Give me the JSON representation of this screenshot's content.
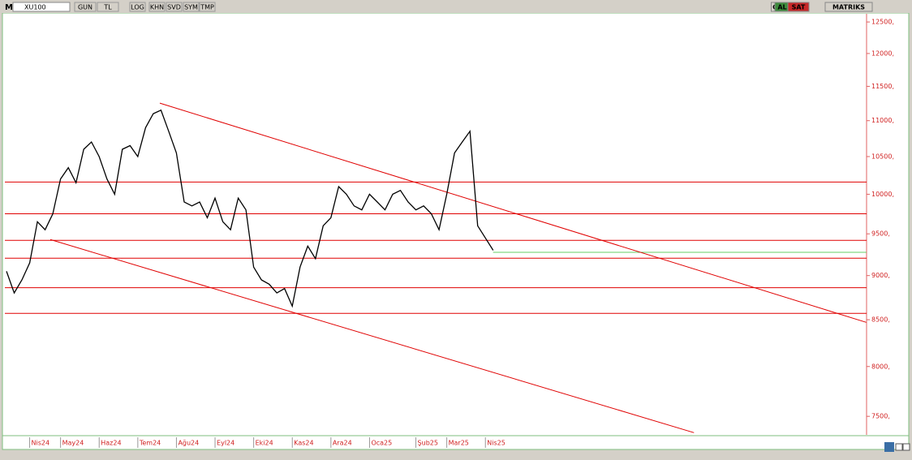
{
  "toolbar": {
    "logo": "M",
    "symbol": "XU100",
    "buttons": [
      "GUN",
      "TL",
      "LOG",
      "KHN",
      "SVD",
      "SYM",
      "TMP"
    ],
    "right": [
      "C",
      "AL",
      "SAT",
      "MATRIKS"
    ]
  },
  "chart_data": {
    "type": "line",
    "color": "#000000",
    "log_scale": true,
    "categories": [
      null,
      null,
      null,
      "Nis24",
      null,
      null,
      null,
      "May24",
      null,
      null,
      null,
      null,
      "Haz24",
      null,
      null,
      null,
      null,
      "Tem24",
      null,
      null,
      null,
      null,
      "Ağu24",
      null,
      null,
      null,
      null,
      "Eyl24",
      null,
      null,
      null,
      null,
      "Eki24",
      null,
      null,
      null,
      null,
      "Kas24",
      null,
      null,
      null,
      null,
      "Ara24",
      null,
      null,
      null,
      null,
      "Oca25",
      null,
      null,
      null,
      null,
      null,
      "Şub25",
      null,
      null,
      null,
      "Mar25",
      null,
      null,
      null,
      null,
      "Nis25",
      null
    ],
    "values": [
      9050,
      8800,
      8950,
      9150,
      9650,
      9550,
      9750,
      10200,
      10350,
      10150,
      10600,
      10700,
      10500,
      10200,
      10000,
      10600,
      10650,
      10500,
      10900,
      11100,
      11150,
      10850,
      10550,
      9900,
      9850,
      9900,
      9700,
      9950,
      9650,
      9550,
      9950,
      9800,
      9100,
      8950,
      8900,
      8800,
      8850,
      8650,
      9100,
      9350,
      9200,
      9600,
      9700,
      10100,
      10000,
      9850,
      9800,
      10000,
      9900,
      9800,
      10000,
      10050,
      9900,
      9800,
      9850,
      9750,
      9550,
      10000,
      10550,
      10700,
      10850,
      9600,
      9450,
      9300
    ],
    "ylim": [
      7330,
      12620
    ],
    "yticks": [
      {
        "value": 7500,
        "label": "7500,"
      },
      {
        "value": 8000,
        "label": "8000,"
      },
      {
        "value": 8500,
        "label": "8500,"
      },
      {
        "value": 9000,
        "label": "9000,"
      },
      {
        "value": 9500,
        "label": "9500,"
      },
      {
        "value": 10000,
        "label": "10000,"
      },
      {
        "value": 10500,
        "label": "10500,"
      },
      {
        "value": 11000,
        "label": "11000,"
      },
      {
        "value": 11500,
        "label": "11500,"
      },
      {
        "value": 12000,
        "label": "12000,"
      },
      {
        "value": 12500,
        "label": "12500,"
      }
    ],
    "levels": [
      {
        "value": 10160,
        "color": "#e00000"
      },
      {
        "value": 9750,
        "color": "#e00000"
      },
      {
        "value": 9420,
        "color": "#e00000"
      },
      {
        "value": 9205,
        "color": "#e00000"
      },
      {
        "value": 8860,
        "color": "#e00000"
      },
      {
        "value": 8570,
        "color": "#e00000"
      },
      {
        "value": 9275,
        "color": "#66cc66",
        "from": 63
      }
    ],
    "trendlines": [
      {
        "color": "#e00000",
        "points": [
          [
            19.85,
            11253
          ],
          [
            111.3,
            8471
          ]
        ]
      },
      {
        "color": "#e00000",
        "points": [
          [
            5.67,
            9430
          ],
          [
            89.0,
            7343
          ]
        ]
      }
    ]
  }
}
